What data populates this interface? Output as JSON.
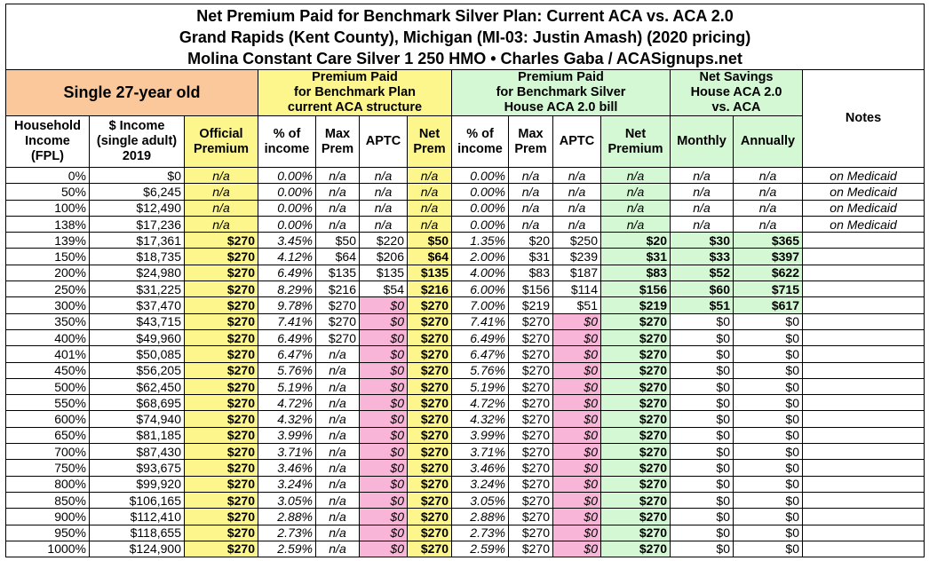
{
  "title": [
    "Net Premium Paid for Benchmark Silver Plan: Current ACA vs. ACA 2.0",
    "Grand Rapids (Kent County), Michigan (MI-03: Justin Amash) (2020 pricing)",
    "Molina Constant Care Silver 1 250 HMO • Charles Gaba / ACASignups.net"
  ],
  "group_headers": [
    {
      "lines": [
        "Single 27-year old"
      ],
      "span": 3,
      "style": "orange"
    },
    {
      "lines": [
        "Premium Paid",
        "for Benchmark Plan",
        "current ACA structure"
      ],
      "span": 4,
      "style": "yellow"
    },
    {
      "lines": [
        "Premium Paid",
        "for Benchmark Silver",
        "House ACA 2.0 bill"
      ],
      "span": 4,
      "style": "green"
    },
    {
      "lines": [
        "Net Savings",
        "House ACA 2.0",
        "vs. ACA"
      ],
      "span": 2,
      "style": "green"
    },
    {
      "lines": [
        "Notes"
      ],
      "span": 1,
      "style": "white"
    }
  ],
  "column_headers": [
    {
      "lines": [
        "Household",
        "Income",
        "(FPL)"
      ],
      "style": "white"
    },
    {
      "lines": [
        "$ Income",
        "(single adult)",
        "2019"
      ],
      "style": "white"
    },
    {
      "lines": [
        "Official",
        "Premium"
      ],
      "style": "yellow"
    },
    {
      "lines": [
        "% of",
        "income"
      ],
      "style": "white"
    },
    {
      "lines": [
        "Max",
        "Prem"
      ],
      "style": "white"
    },
    {
      "lines": [
        "APTC"
      ],
      "style": "white"
    },
    {
      "lines": [
        "Net",
        "Prem"
      ],
      "style": "yellow"
    },
    {
      "lines": [
        "% of",
        "income"
      ],
      "style": "white"
    },
    {
      "lines": [
        "Max",
        "Prem"
      ],
      "style": "white"
    },
    {
      "lines": [
        "APTC"
      ],
      "style": "white"
    },
    {
      "lines": [
        "Net",
        "Premium"
      ],
      "style": "green"
    },
    {
      "lines": [
        "Monthly"
      ],
      "style": "green"
    },
    {
      "lines": [
        "Annually"
      ],
      "style": "green"
    }
  ],
  "rows": [
    [
      "0%",
      "$0",
      "n/a",
      "0.00%",
      "n/a",
      "n/a",
      "n/a",
      "0.00%",
      "n/a",
      "n/a",
      "n/a",
      "n/a",
      "n/a",
      "on Medicaid"
    ],
    [
      "50%",
      "$6,245",
      "n/a",
      "0.00%",
      "n/a",
      "n/a",
      "n/a",
      "0.00%",
      "n/a",
      "n/a",
      "n/a",
      "n/a",
      "n/a",
      "on Medicaid"
    ],
    [
      "100%",
      "$12,490",
      "n/a",
      "0.00%",
      "n/a",
      "n/a",
      "n/a",
      "0.00%",
      "n/a",
      "n/a",
      "n/a",
      "n/a",
      "n/a",
      "on Medicaid"
    ],
    [
      "138%",
      "$17,236",
      "n/a",
      "0.00%",
      "n/a",
      "n/a",
      "n/a",
      "0.00%",
      "n/a",
      "n/a",
      "n/a",
      "n/a",
      "n/a",
      "on Medicaid"
    ],
    [
      "139%",
      "$17,361",
      "$270",
      "3.45%",
      "$50",
      "$220",
      "$50",
      "1.35%",
      "$20",
      "$250",
      "$20",
      "$30",
      "$365"
    ],
    [
      "150%",
      "$18,735",
      "$270",
      "4.12%",
      "$64",
      "$206",
      "$64",
      "2.00%",
      "$31",
      "$239",
      "$31",
      "$33",
      "$397"
    ],
    [
      "200%",
      "$24,980",
      "$270",
      "6.49%",
      "$135",
      "$135",
      "$135",
      "4.00%",
      "$83",
      "$187",
      "$83",
      "$52",
      "$622"
    ],
    [
      "250%",
      "$31,225",
      "$270",
      "8.29%",
      "$216",
      "$54",
      "$216",
      "6.00%",
      "$156",
      "$114",
      "$156",
      "$60",
      "$715"
    ],
    [
      "300%",
      "$37,470",
      "$270",
      "9.78%",
      "$270",
      "$0",
      "$270",
      "7.00%",
      "$219",
      "$51",
      "$219",
      "$51",
      "$617"
    ],
    [
      "350%",
      "$43,715",
      "$270",
      "7.41%",
      "$270",
      "$0",
      "$270",
      "7.41%",
      "$270",
      "$0",
      "$270",
      "$0",
      "$0"
    ],
    [
      "400%",
      "$49,960",
      "$270",
      "6.49%",
      "$270",
      "$0",
      "$270",
      "6.49%",
      "$270",
      "$0",
      "$270",
      "$0",
      "$0"
    ],
    [
      "401%",
      "$50,085",
      "$270",
      "6.47%",
      "n/a",
      "$0",
      "$270",
      "6.47%",
      "$270",
      "$0",
      "$270",
      "$0",
      "$0"
    ],
    [
      "450%",
      "$56,205",
      "$270",
      "5.76%",
      "n/a",
      "$0",
      "$270",
      "5.76%",
      "$270",
      "$0",
      "$270",
      "$0",
      "$0"
    ],
    [
      "500%",
      "$62,450",
      "$270",
      "5.19%",
      "n/a",
      "$0",
      "$270",
      "5.19%",
      "$270",
      "$0",
      "$270",
      "$0",
      "$0"
    ],
    [
      "550%",
      "$68,695",
      "$270",
      "4.72%",
      "n/a",
      "$0",
      "$270",
      "4.72%",
      "$270",
      "$0",
      "$270",
      "$0",
      "$0"
    ],
    [
      "600%",
      "$74,940",
      "$270",
      "4.32%",
      "n/a",
      "$0",
      "$270",
      "4.32%",
      "$270",
      "$0",
      "$270",
      "$0",
      "$0"
    ],
    [
      "650%",
      "$81,185",
      "$270",
      "3.99%",
      "n/a",
      "$0",
      "$270",
      "3.99%",
      "$270",
      "$0",
      "$270",
      "$0",
      "$0"
    ],
    [
      "700%",
      "$87,430",
      "$270",
      "3.71%",
      "n/a",
      "$0",
      "$270",
      "3.71%",
      "$270",
      "$0",
      "$270",
      "$0",
      "$0"
    ],
    [
      "750%",
      "$93,675",
      "$270",
      "3.46%",
      "n/a",
      "$0",
      "$270",
      "3.46%",
      "$270",
      "$0",
      "$270",
      "$0",
      "$0"
    ],
    [
      "800%",
      "$99,920",
      "$270",
      "3.24%",
      "n/a",
      "$0",
      "$270",
      "3.24%",
      "$270",
      "$0",
      "$270",
      "$0",
      "$0"
    ],
    [
      "850%",
      "$106,165",
      "$270",
      "3.05%",
      "n/a",
      "$0",
      "$270",
      "3.05%",
      "$270",
      "$0",
      "$270",
      "$0",
      "$0"
    ],
    [
      "900%",
      "$112,410",
      "$270",
      "2.88%",
      "n/a",
      "$0",
      "$270",
      "2.88%",
      "$270",
      "$0",
      "$270",
      "$0",
      "$0"
    ],
    [
      "950%",
      "$118,655",
      "$270",
      "2.73%",
      "n/a",
      "$0",
      "$270",
      "2.73%",
      "$270",
      "$0",
      "$270",
      "$0",
      "$0"
    ],
    [
      "1000%",
      "$124,900",
      "$270",
      "2.59%",
      "n/a",
      "$0",
      "$270",
      "2.59%",
      "$270",
      "$0",
      "$270",
      "$0",
      "$0"
    ]
  ]
}
